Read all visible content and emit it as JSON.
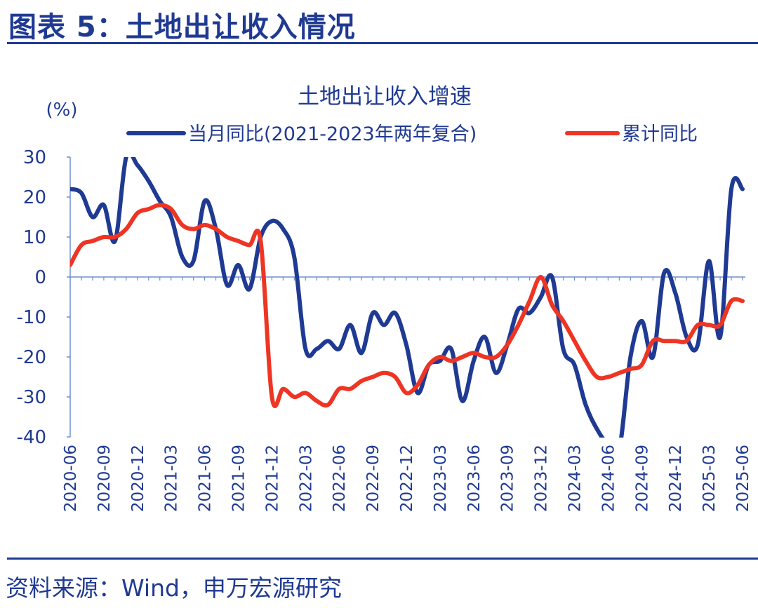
{
  "figure_title": "图表 5：土地出让收入情况",
  "source_text": "资料来源：Wind，申万宏源研究",
  "colors": {
    "brand": "#1f3a93",
    "series1": "#1f3a93",
    "series2": "#ee3524"
  },
  "chart_data": {
    "type": "line",
    "title": "土地出让收入增速",
    "ylabel": "(%)",
    "ylim": [
      -40,
      30
    ],
    "yticks": [
      30,
      20,
      10,
      0,
      -10,
      -20,
      -30,
      -40
    ],
    "x_tick_labels": [
      "2020-06",
      "2020-09",
      "2020-12",
      "2021-03",
      "2021-06",
      "2021-09",
      "2021-12",
      "2022-03",
      "2022-06",
      "2022-09",
      "2022-12",
      "2023-03",
      "2023-06",
      "2023-09",
      "2023-12",
      "2024-03",
      "2024-06",
      "2024-09",
      "2024-12",
      "2025-03",
      "2025-06"
    ],
    "grid": false,
    "legend_position": "top",
    "x": [
      "2020-06",
      "2020-07",
      "2020-08",
      "2020-09",
      "2020-10",
      "2020-11",
      "2020-12",
      "2021-01",
      "2021-02",
      "2021-03",
      "2021-04",
      "2021-05",
      "2021-06",
      "2021-07",
      "2021-08",
      "2021-09",
      "2021-10",
      "2021-11",
      "2021-12",
      "2022-01",
      "2022-02",
      "2022-03",
      "2022-04",
      "2022-05",
      "2022-06",
      "2022-07",
      "2022-08",
      "2022-09",
      "2022-10",
      "2022-11",
      "2022-12",
      "2023-01",
      "2023-02",
      "2023-03",
      "2023-04",
      "2023-05",
      "2023-06",
      "2023-07",
      "2023-08",
      "2023-09",
      "2023-10",
      "2023-11",
      "2023-12",
      "2024-01",
      "2024-02",
      "2024-03",
      "2024-04",
      "2024-05",
      "2024-06",
      "2024-07",
      "2024-08",
      "2024-09",
      "2024-10",
      "2024-11",
      "2024-12",
      "2025-01",
      "2025-02",
      "2025-03",
      "2025-04",
      "2025-05",
      "2025-06"
    ],
    "series": [
      {
        "name": "当月同比(2021-2023年两年复合)",
        "color": "#1f3a93",
        "values": [
          22,
          21,
          15,
          18,
          9,
          30,
          28,
          24,
          19,
          15,
          5,
          4,
          19,
          12,
          -2,
          3,
          -3,
          10,
          14,
          12,
          5,
          -18,
          -18,
          -16,
          -18,
          -12,
          -19,
          -9,
          -12,
          -9,
          -17,
          -29,
          -22,
          -21,
          -18,
          -31,
          -21,
          -15,
          -24,
          -17,
          -8,
          -9,
          -5,
          0,
          -18,
          -22,
          -32,
          -38,
          -42,
          -43,
          -20,
          -11,
          -20,
          1,
          -4,
          -15,
          -17,
          4,
          -15,
          22,
          22
        ],
        "clipped_values_note": ""
      },
      {
        "name": "累计同比",
        "color": "#ee3524",
        "values": [
          3,
          8,
          9,
          10,
          10,
          12,
          16,
          17,
          18,
          17,
          13,
          12,
          13,
          12,
          10,
          9,
          8,
          9,
          -30,
          -28,
          -30,
          -29,
          -31,
          -32,
          -28,
          -28,
          -26,
          -25,
          -24,
          -25,
          -29,
          -27,
          -22,
          -20,
          -21,
          -20,
          -19,
          -20,
          -20,
          -17,
          -12,
          -6,
          0,
          -7,
          -11,
          -16,
          -21,
          -25,
          -25,
          -24,
          -23,
          -22,
          -16,
          -16,
          -16,
          -16,
          -12,
          -12,
          -12,
          -6,
          -6
        ]
      }
    ]
  }
}
